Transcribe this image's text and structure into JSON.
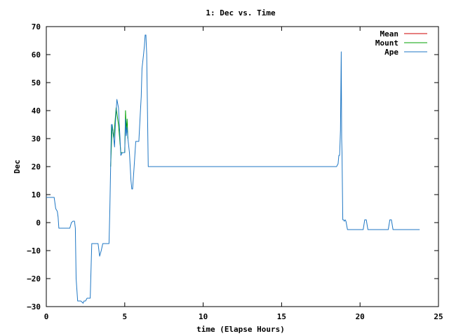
{
  "chart_data": {
    "type": "line",
    "title": "1: Dec vs. Time",
    "xlabel": "time (Elapse Hours)",
    "ylabel": "Dec",
    "xlim": [
      0,
      25
    ],
    "ylim": [
      -30,
      70
    ],
    "xticks": [
      0,
      5,
      10,
      15,
      20,
      25
    ],
    "xtick_labels": [
      "0",
      "5",
      "10",
      "15",
      "20",
      "25"
    ],
    "yticks": [
      -30,
      -20,
      -10,
      0,
      10,
      20,
      30,
      40,
      50,
      60,
      70
    ],
    "ytick_labels": [
      "−30",
      "−20",
      "−10",
      "0",
      "10",
      "20",
      "30",
      "40",
      "50",
      "60",
      "70"
    ],
    "grid": false,
    "legend_position": "top-right",
    "series": [
      {
        "name": "Mean",
        "color": "#cc0000",
        "x": [
          6.5,
          7.4
        ],
        "y": [
          20.0,
          20.0
        ]
      },
      {
        "name": "Mount",
        "color": "#00a000",
        "x": [
          4.1,
          4.2,
          4.3,
          4.45,
          4.6,
          4.75,
          5.0,
          5.05,
          5.1,
          5.15,
          5.2
        ],
        "y": [
          20.0,
          35.0,
          30.0,
          41.0,
          35.0,
          25.0,
          25.0,
          40.0,
          33.0,
          37.0,
          30.0
        ]
      },
      {
        "name": "Ape",
        "color": "#1f77c4",
        "x": [
          0,
          0.5,
          0.6,
          0.7,
          0.75,
          0.8,
          1.5,
          1.6,
          1.7,
          1.8,
          1.85,
          1.9,
          2.0,
          2.2,
          2.3,
          2.35,
          2.4,
          2.5,
          2.55,
          2.6,
          2.7,
          2.8,
          2.9,
          3.0,
          3.3,
          3.4,
          3.5,
          3.6,
          3.7,
          3.8,
          4.0,
          4.05,
          4.1,
          4.15,
          4.2,
          4.3,
          4.35,
          4.4,
          4.5,
          4.6,
          4.7,
          4.75,
          4.85,
          5.0,
          5.05,
          5.1,
          5.15,
          5.2,
          5.3,
          5.4,
          5.45,
          5.5,
          5.6,
          5.7,
          5.8,
          5.9,
          6.0,
          6.05,
          6.1,
          6.2,
          6.25,
          6.3,
          6.35,
          6.4,
          6.5,
          18.5,
          18.6,
          18.65,
          18.7,
          18.75,
          18.8,
          18.83,
          18.85,
          18.9,
          18.95,
          19.0,
          19.05,
          19.1,
          19.2,
          19.5,
          20.0,
          20.2,
          20.3,
          20.4,
          20.5,
          21.0,
          21.8,
          21.9,
          22.0,
          22.1,
          22.2,
          23.0,
          23.8
        ],
        "y": [
          9.0,
          9.0,
          5.0,
          4.0,
          2.0,
          -2.0,
          -2.0,
          0.0,
          0.5,
          0.5,
          -2.0,
          -20.0,
          -28.0,
          -28.0,
          -28.5,
          -28.8,
          -28.0,
          -28.0,
          -27.5,
          -27.0,
          -27.0,
          -27.0,
          -7.5,
          -7.5,
          -7.5,
          -12.0,
          -10.0,
          -7.5,
          -7.5,
          -7.5,
          -7.5,
          5.0,
          20.0,
          35.0,
          35.0,
          30.0,
          27.0,
          35.0,
          44.0,
          41.0,
          30.0,
          24.0,
          25.0,
          25.0,
          37.0,
          31.0,
          34.0,
          30.0,
          25.0,
          15.0,
          12.0,
          12.0,
          20.0,
          29.0,
          29.0,
          29.0,
          40.0,
          45.0,
          55.0,
          60.0,
          63.0,
          67.0,
          67.0,
          60.0,
          20.0,
          20.0,
          21.0,
          24.0,
          24.0,
          33.0,
          61.0,
          30.0,
          25.0,
          1.0,
          1.0,
          0.5,
          1.0,
          0.5,
          -2.5,
          -2.5,
          -2.5,
          -2.5,
          1.0,
          1.0,
          -2.5,
          -2.5,
          -2.5,
          1.0,
          1.0,
          -2.5,
          -2.5,
          -2.5,
          -2.5
        ]
      }
    ]
  }
}
